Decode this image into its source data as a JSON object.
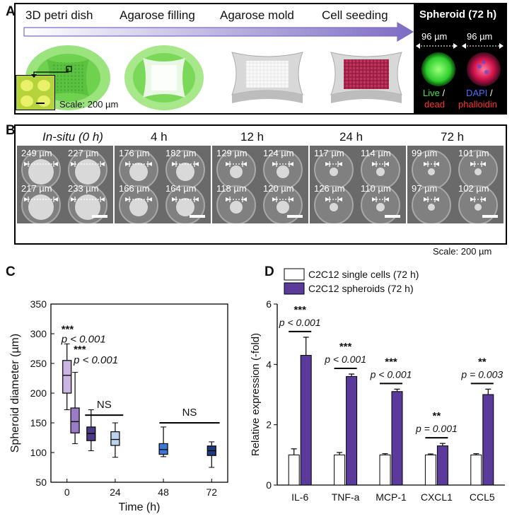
{
  "panelA": {
    "label": "A",
    "steps": [
      "3D petri dish",
      "Agarose filling",
      "Agarose mold",
      "Cell seeding"
    ],
    "scale": "Scale: 200 µm",
    "spheroid_title": "Spheroid (72 h)",
    "dim1": "96 µm",
    "dim2": "96 µm",
    "live": "Live",
    "slash1": "/",
    "dead": "dead",
    "dapi": "DAPI",
    "slash2": "/",
    "phalloidin": "phalloidin"
  },
  "panelB": {
    "label": "B",
    "times": [
      "In-situ (0 h)",
      "4 h",
      "12 h",
      "24 h",
      "72 h"
    ],
    "measurements": [
      [
        "249 µm",
        "227 µm",
        "217 µm",
        "233 µm"
      ],
      [
        "176 µm",
        "182 µm",
        "166 µm",
        "164 µm"
      ],
      [
        "129 µm",
        "124 µm",
        "118 µm",
        "120 µm"
      ],
      [
        "117 µm",
        "114 µm",
        "126 µm",
        "110 µm"
      ],
      [
        "99 µm",
        "101 µm",
        "97 µm",
        "102 µm"
      ]
    ],
    "scale": "Scale: 200 µm"
  },
  "panelC": {
    "label": "C",
    "chart_data": {
      "type": "box",
      "title": "",
      "xlabel": "Time (h)",
      "ylabel": "Spheroid diameter (µm)",
      "xticks": [
        0,
        24,
        48,
        72
      ],
      "yticks": [
        50,
        100,
        150,
        200,
        250,
        300,
        350
      ],
      "xlim": [
        -8,
        80
      ],
      "ylim": [
        50,
        350
      ],
      "boxes": [
        {
          "x": 0,
          "min": 172,
          "q1": 200,
          "median": 230,
          "q3": 255,
          "max": 283,
          "color": "#c9b6e3"
        },
        {
          "x": 4,
          "min": 115,
          "q1": 133,
          "median": 152,
          "q3": 175,
          "max": 235,
          "color": "#9a7cc6"
        },
        {
          "x": 12,
          "min": 103,
          "q1": 120,
          "median": 132,
          "q3": 143,
          "max": 172,
          "color": "#4b3a85"
        },
        {
          "x": 24,
          "min": 92,
          "q1": 112,
          "median": 122,
          "q3": 135,
          "max": 150,
          "color": "#bcd3ef"
        },
        {
          "x": 48,
          "min": 93,
          "q1": 97,
          "median": 105,
          "q3": 115,
          "max": 143,
          "color": "#3b78d8"
        },
        {
          "x": 72,
          "min": 75,
          "q1": 95,
          "median": 103,
          "q3": 111,
          "max": 118,
          "color": "#1d3a80"
        }
      ],
      "annotations": [
        {
          "stars": "***",
          "p": "p < 0.001"
        },
        {
          "stars": "***",
          "p": "p < 0.001"
        },
        {
          "text": "NS"
        },
        {
          "text": "NS"
        }
      ]
    }
  },
  "panelD": {
    "label": "D",
    "chart_data": {
      "type": "bar",
      "categories": [
        "IL-6",
        "TNF-a",
        "MCP-1",
        "CXCL1",
        "CCL5"
      ],
      "series": [
        {
          "name": "C2C12 single cells (72 h)",
          "values": [
            1.0,
            1.0,
            1.0,
            1.0,
            1.0
          ],
          "errors": [
            0.2,
            0.08,
            0.04,
            0.03,
            0.04
          ],
          "color": "#ffffff"
        },
        {
          "name": "C2C12 spheroids (72 h)",
          "values": [
            4.3,
            3.6,
            3.1,
            1.3,
            3.0
          ],
          "errors": [
            0.6,
            0.08,
            0.08,
            0.08,
            0.18
          ],
          "color": "#5a3a9a"
        }
      ],
      "xlabel": "",
      "ylabel": "Relative expression (-fold)",
      "ylim": [
        0,
        6
      ],
      "yticks": [
        0,
        2,
        4,
        6
      ],
      "significance": [
        {
          "stars": "***",
          "p": "p < 0.001"
        },
        {
          "stars": "***",
          "p": "p < 0.001"
        },
        {
          "stars": "***",
          "p": "p < 0.001"
        },
        {
          "stars": "**",
          "p": "p = 0.001"
        },
        {
          "stars": "**",
          "p": "p = 0.003"
        }
      ]
    }
  },
  "colors": {
    "purple_dark": "#5a3a9a",
    "arrow": "#7d6cc4",
    "green": "#7be05c"
  }
}
